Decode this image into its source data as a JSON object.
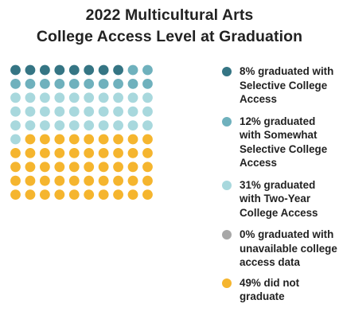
{
  "chart_data": {
    "type": "waffle",
    "title_lines": [
      "2022 Multicultural Arts",
      "College Access Level at Graduation"
    ],
    "grid": {
      "rows": 10,
      "cols": 10
    },
    "series": [
      {
        "key": "selective",
        "label": "8% graduated with Selective College Access",
        "value": 8,
        "color": "#357584"
      },
      {
        "key": "somewhat",
        "label": "12% graduated with Somewhat Selective College Access",
        "value": 12,
        "color": "#6fb1bd"
      },
      {
        "key": "two_year",
        "label": "31% graduated with Two-Year College Access",
        "value": 31,
        "color": "#a8d8dd"
      },
      {
        "key": "unavailable",
        "label": "0% graduated with unavailable college access data",
        "value": 0,
        "color": "#a7a7a7"
      },
      {
        "key": "not_grad",
        "label": "49% did not graduate",
        "value": 49,
        "color": "#f5b52e"
      }
    ],
    "legend_position": "right"
  }
}
